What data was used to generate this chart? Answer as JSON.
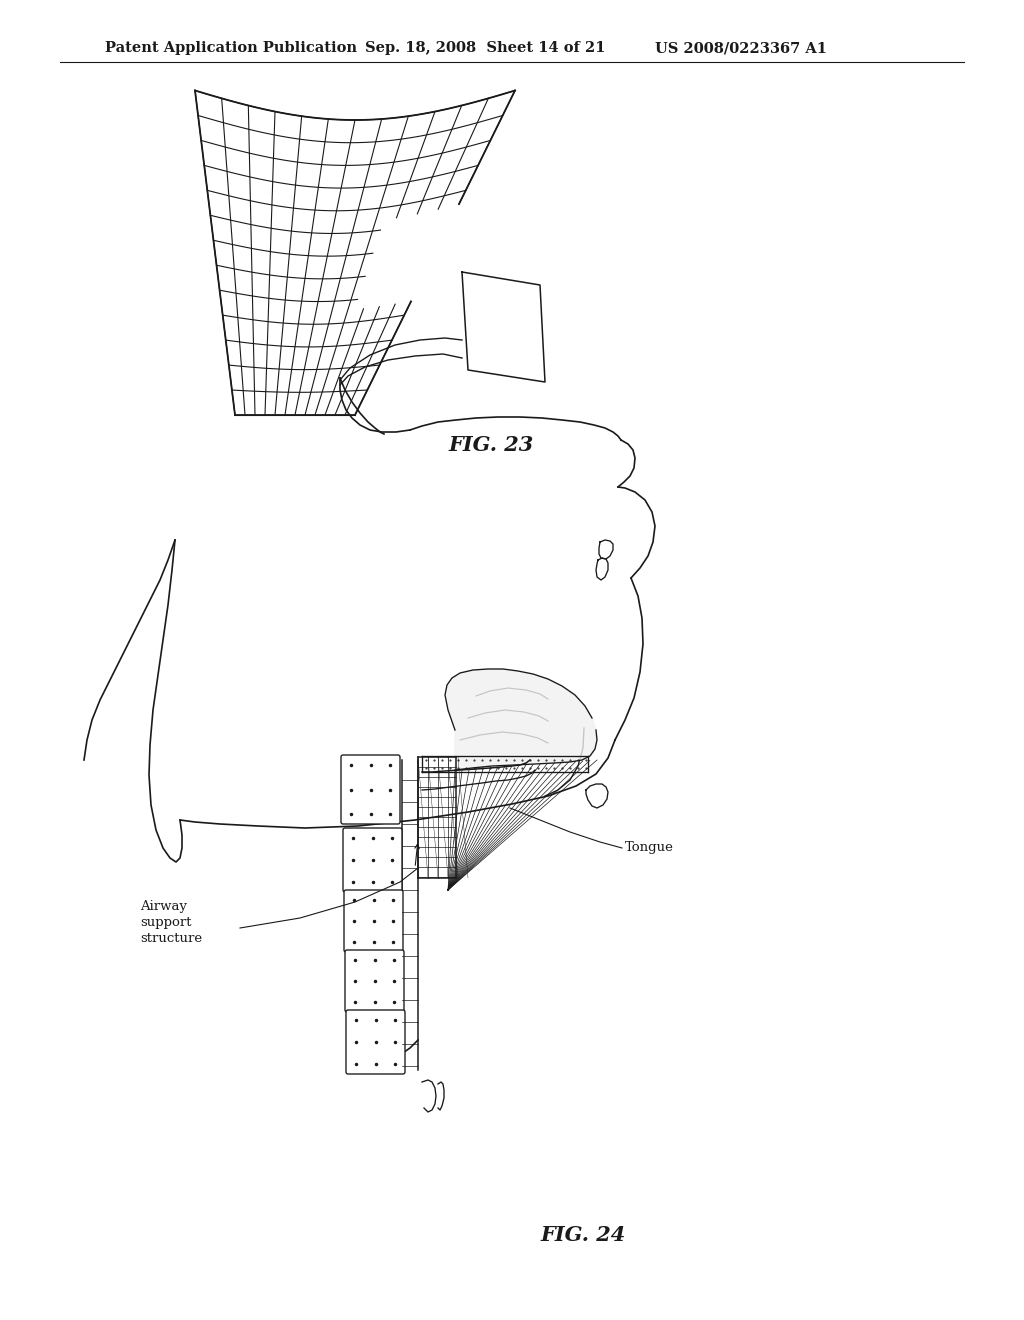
{
  "header_left": "Patent Application Publication",
  "header_mid": "Sep. 18, 2008  Sheet 14 of 21",
  "header_right": "US 2008/0223367 A1",
  "fig23_label": "FIG. 23",
  "fig24_label": "FIG. 24",
  "label_airway": "Airway\nsupport\nstructure",
  "label_tongue": "Tongue",
  "bg_color": "#ffffff",
  "line_color": "#1a1a1a",
  "header_fontsize": 10.5,
  "fig_label_fontsize": 15
}
